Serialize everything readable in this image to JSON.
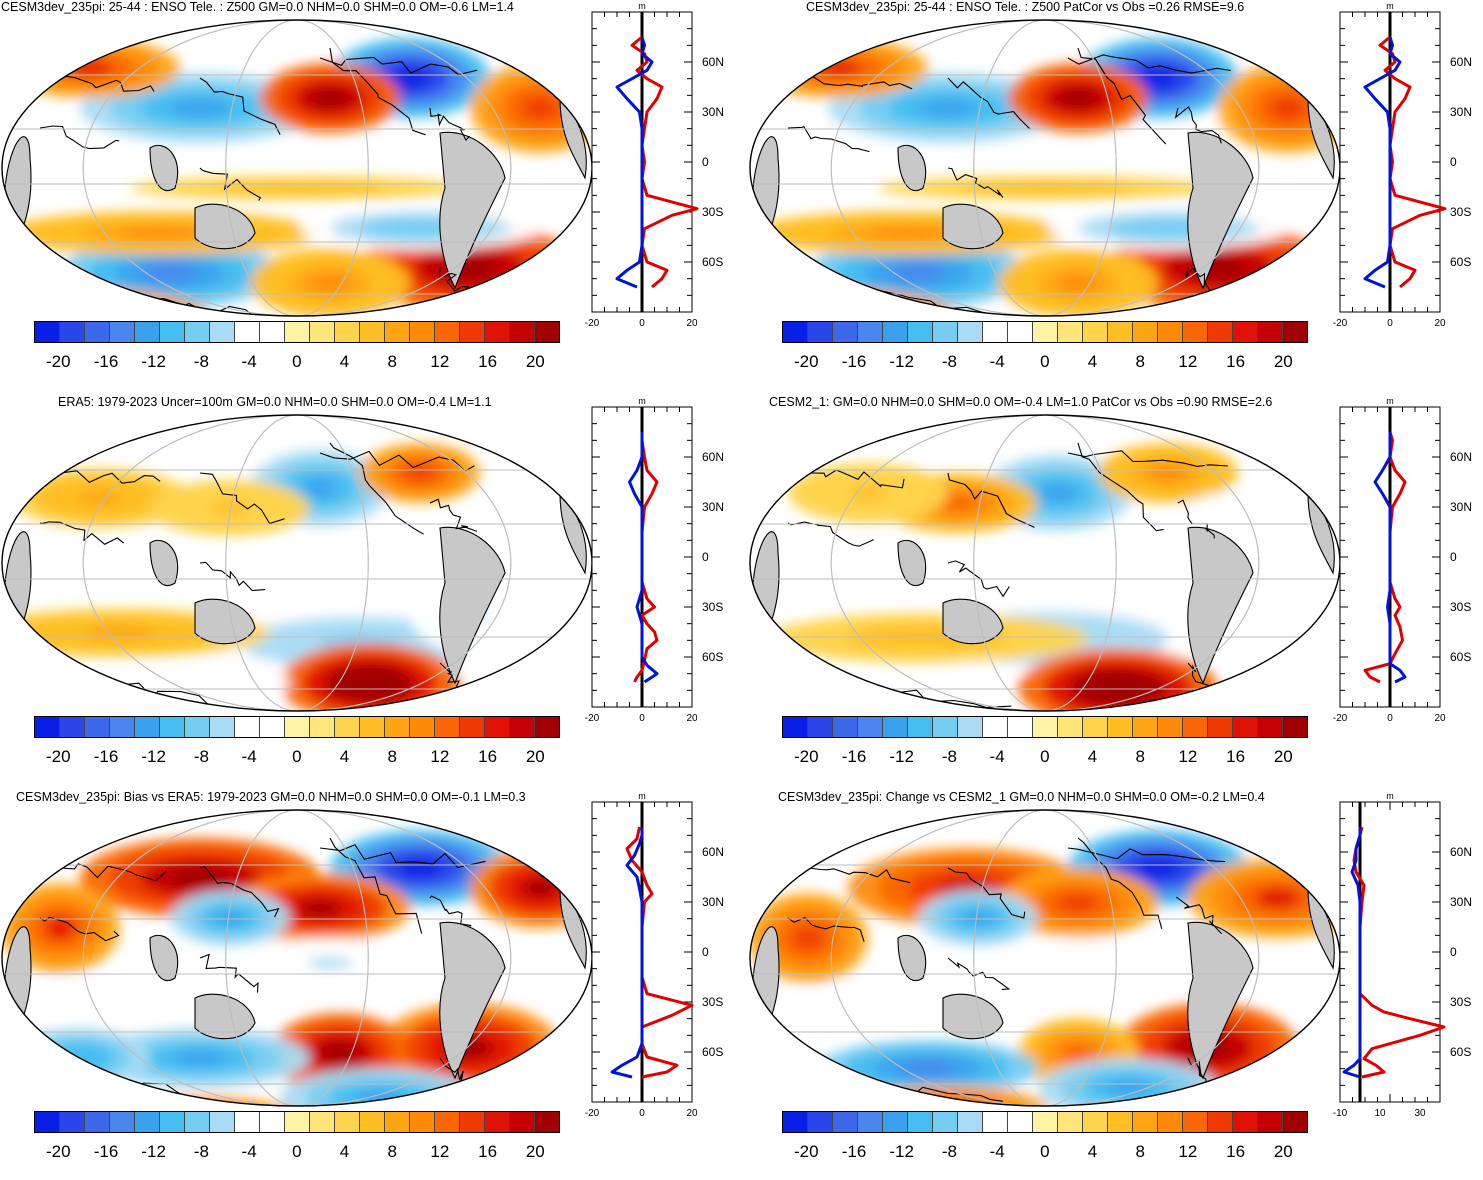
{
  "panels": [
    {
      "id": "p1",
      "title": "CESM3dev_235pi: 25-44 : ENSO Tele. : Z500 GM=0.0 NHM=0.0 SHM=0.0 OM=-0.6 LM=1.4",
      "zm_xticks": [
        "-20",
        "0",
        "20"
      ]
    },
    {
      "id": "p2",
      "title": "CESM3dev_235pi: 25-44 : ENSO Tele. : Z500 PatCor vs Obs =0.26 RMSE=9.6",
      "zm_xticks": [
        "-20",
        "0",
        "20"
      ]
    },
    {
      "id": "p3",
      "title": "ERA5: 1979-2023 Uncer=100m GM=0.0 NHM=0.0 SHM=0.0 OM=-0.4 LM=1.1",
      "zm_xticks": [
        "-20",
        "0",
        "20"
      ]
    },
    {
      "id": "p4",
      "title": "CESM2_1: GM=0.0 NHM=0.0 SHM=0.0 OM=-0.4 LM=1.0 PatCor vs Obs =0.90 RMSE=2.6",
      "zm_xticks": [
        "-20",
        "0",
        "20"
      ]
    },
    {
      "id": "p5",
      "title": "CESM3dev_235pi: Bias vs ERA5: 1979-2023 GM=0.0 NHM=0.0 SHM=0.0 OM=-0.1 LM=0.3",
      "zm_xticks": [
        "-20",
        "0",
        "20"
      ]
    },
    {
      "id": "p6",
      "title": "CESM3dev_235pi: Change vs CESM2_1 GM=0.0 NHM=0.0 SHM=0.0 OM=-0.2 LM=0.4",
      "zm_xticks": [
        "-10",
        "10",
        "30"
      ]
    }
  ],
  "colorbar": {
    "labels": [
      "-20",
      "-16",
      "-12",
      "-8",
      "-4",
      "0",
      "4",
      "8",
      "12",
      "16",
      "20"
    ],
    "colors": [
      "#0a1fe6",
      "#2a45e8",
      "#3d68ea",
      "#4a86ee",
      "#3aa2ec",
      "#45bdf0",
      "#76cdf2",
      "#a9dcf4",
      "#ffffff",
      "#ffffff",
      "#fff3a6",
      "#ffe57a",
      "#ffd44c",
      "#ffbf24",
      "#ffa514",
      "#ff8a0a",
      "#f96605",
      "#ef3b03",
      "#df1205",
      "#c40004",
      "#a00004"
    ]
  },
  "zm_units": "m",
  "lat_labels": [
    "60N",
    "30N",
    "0",
    "30S",
    "60S"
  ],
  "chart_data": [
    {
      "type": "line",
      "panel": "p1",
      "xlabel": "m",
      "xlim": [
        -20,
        20
      ],
      "ylim": [
        -90,
        90
      ],
      "series": [
        {
          "color": "#e00000",
          "lat": [
            -75,
            -70,
            -65,
            -60,
            -50,
            -40,
            -32,
            -28,
            -20,
            -10,
            0,
            10,
            20,
            30,
            38,
            45,
            50,
            55,
            60,
            65,
            70,
            75
          ],
          "values": [
            4,
            8,
            10,
            2,
            0,
            1,
            12,
            22,
            2,
            0,
            1,
            0,
            1,
            2,
            6,
            8,
            2,
            -2,
            2,
            1,
            -4,
            0
          ]
        },
        {
          "color": "#0014d8",
          "lat": [
            -75,
            -70,
            -65,
            -60,
            -50,
            -40,
            -30,
            -20,
            -10,
            0,
            10,
            20,
            30,
            38,
            45,
            50,
            55,
            60,
            65,
            70,
            75
          ],
          "values": [
            -2,
            -10,
            -6,
            -1,
            0,
            0,
            0,
            0,
            0,
            0,
            0,
            0,
            -1,
            -6,
            -10,
            -4,
            2,
            4,
            0,
            1,
            0
          ]
        }
      ]
    },
    {
      "type": "line",
      "panel": "p2",
      "xlabel": "m",
      "xlim": [
        -20,
        20
      ],
      "ylim": [
        -90,
        90
      ],
      "series": [
        {
          "color": "#e00000",
          "lat": [
            -75,
            -70,
            -65,
            -60,
            -50,
            -40,
            -32,
            -28,
            -20,
            -10,
            0,
            10,
            20,
            30,
            38,
            45,
            50,
            55,
            60,
            65,
            70,
            75
          ],
          "values": [
            4,
            8,
            10,
            2,
            0,
            1,
            12,
            22,
            2,
            0,
            1,
            0,
            1,
            2,
            6,
            8,
            2,
            -2,
            2,
            1,
            -4,
            0
          ]
        },
        {
          "color": "#0014d8",
          "lat": [
            -75,
            -70,
            -65,
            -60,
            -50,
            -40,
            -30,
            -20,
            -10,
            0,
            10,
            20,
            30,
            38,
            45,
            50,
            55,
            60,
            65,
            70,
            75
          ],
          "values": [
            -2,
            -10,
            -6,
            -1,
            0,
            0,
            0,
            0,
            0,
            0,
            0,
            0,
            -1,
            -6,
            -10,
            -4,
            2,
            4,
            0,
            1,
            0
          ]
        }
      ]
    },
    {
      "type": "line",
      "panel": "p3",
      "xlabel": "m",
      "xlim": [
        -20,
        20
      ],
      "ylim": [
        -90,
        90
      ],
      "series": [
        {
          "color": "#e00000",
          "lat": [
            -75,
            -72,
            -68,
            -62,
            -55,
            -50,
            -45,
            -40,
            -35,
            -30,
            -25,
            -15,
            0,
            15,
            30,
            38,
            45,
            52,
            60,
            70,
            75
          ],
          "values": [
            -3,
            -2,
            0,
            1,
            2,
            6,
            5,
            2,
            0,
            5,
            2,
            0,
            0,
            0,
            1,
            4,
            6,
            2,
            1,
            0,
            0
          ]
        },
        {
          "color": "#0014d8",
          "lat": [
            -75,
            -70,
            -65,
            -60,
            -50,
            -40,
            -30,
            -20,
            0,
            20,
            30,
            38,
            45,
            52,
            60,
            70,
            75
          ],
          "values": [
            1,
            6,
            2,
            0,
            0,
            0,
            -2,
            0,
            0,
            0,
            0,
            -3,
            -5,
            -2,
            0,
            0,
            0
          ]
        }
      ]
    },
    {
      "type": "line",
      "panel": "p4",
      "xlabel": "m",
      "xlim": [
        -20,
        20
      ],
      "ylim": [
        -90,
        90
      ],
      "series": [
        {
          "color": "#e00000",
          "lat": [
            -75,
            -72,
            -68,
            -64,
            -58,
            -50,
            -42,
            -35,
            -30,
            -25,
            -15,
            0,
            15,
            30,
            38,
            45,
            52,
            60,
            70,
            75
          ],
          "values": [
            -4,
            -8,
            -10,
            0,
            2,
            5,
            4,
            2,
            4,
            2,
            0,
            0,
            0,
            1,
            4,
            6,
            2,
            0,
            1,
            0
          ]
        },
        {
          "color": "#0014d8",
          "lat": [
            -75,
            -72,
            -68,
            -64,
            -58,
            -50,
            -40,
            -30,
            -20,
            0,
            20,
            30,
            38,
            45,
            52,
            60,
            70,
            75
          ],
          "values": [
            2,
            6,
            4,
            0,
            0,
            0,
            0,
            -1,
            0,
            0,
            0,
            0,
            -3,
            -6,
            -3,
            0,
            0,
            0
          ]
        }
      ]
    },
    {
      "type": "line",
      "panel": "p5",
      "xlabel": "m",
      "xlim": [
        -20,
        20
      ],
      "ylim": [
        -90,
        90
      ],
      "series": [
        {
          "color": "#e00000",
          "lat": [
            -75,
            -72,
            -68,
            -63,
            -55,
            -45,
            -38,
            -32,
            -25,
            -15,
            0,
            15,
            30,
            35,
            40,
            48,
            55,
            62,
            68,
            75
          ],
          "values": [
            0,
            10,
            14,
            2,
            0,
            0,
            12,
            20,
            2,
            0,
            0,
            0,
            1,
            4,
            2,
            0,
            -4,
            -6,
            -2,
            -1
          ]
        },
        {
          "color": "#0014d8",
          "lat": [
            -75,
            -72,
            -68,
            -63,
            -55,
            -45,
            -30,
            -15,
            0,
            15,
            30,
            38,
            45,
            52,
            58,
            65,
            70,
            75
          ],
          "values": [
            -4,
            -12,
            -8,
            -2,
            0,
            0,
            0,
            0,
            0,
            0,
            0,
            -1,
            -2,
            -6,
            -3,
            -1,
            0,
            0
          ]
        }
      ]
    },
    {
      "type": "line",
      "panel": "p6",
      "xlabel": "m",
      "xlim": [
        -10,
        40
      ],
      "ylim": [
        -90,
        90
      ],
      "series": [
        {
          "color": "#e00000",
          "lat": [
            -75,
            -72,
            -68,
            -64,
            -58,
            -50,
            -45,
            -40,
            -36,
            -32,
            -25,
            -15,
            0,
            15,
            30,
            40,
            48,
            55,
            62,
            70,
            75
          ],
          "values": [
            1,
            12,
            8,
            2,
            6,
            30,
            42,
            25,
            12,
            6,
            0,
            0,
            0,
            0,
            1,
            2,
            -2,
            -3,
            -2,
            0,
            1
          ]
        },
        {
          "color": "#0014d8",
          "lat": [
            -75,
            -72,
            -68,
            -64,
            -58,
            -50,
            -40,
            -30,
            -15,
            0,
            15,
            30,
            40,
            48,
            55,
            62,
            70,
            75
          ],
          "values": [
            0,
            -8,
            -3,
            0,
            0,
            0,
            0,
            0,
            0,
            0,
            0,
            0,
            -1,
            -4,
            -2,
            -2,
            0,
            0
          ]
        }
      ]
    }
  ]
}
